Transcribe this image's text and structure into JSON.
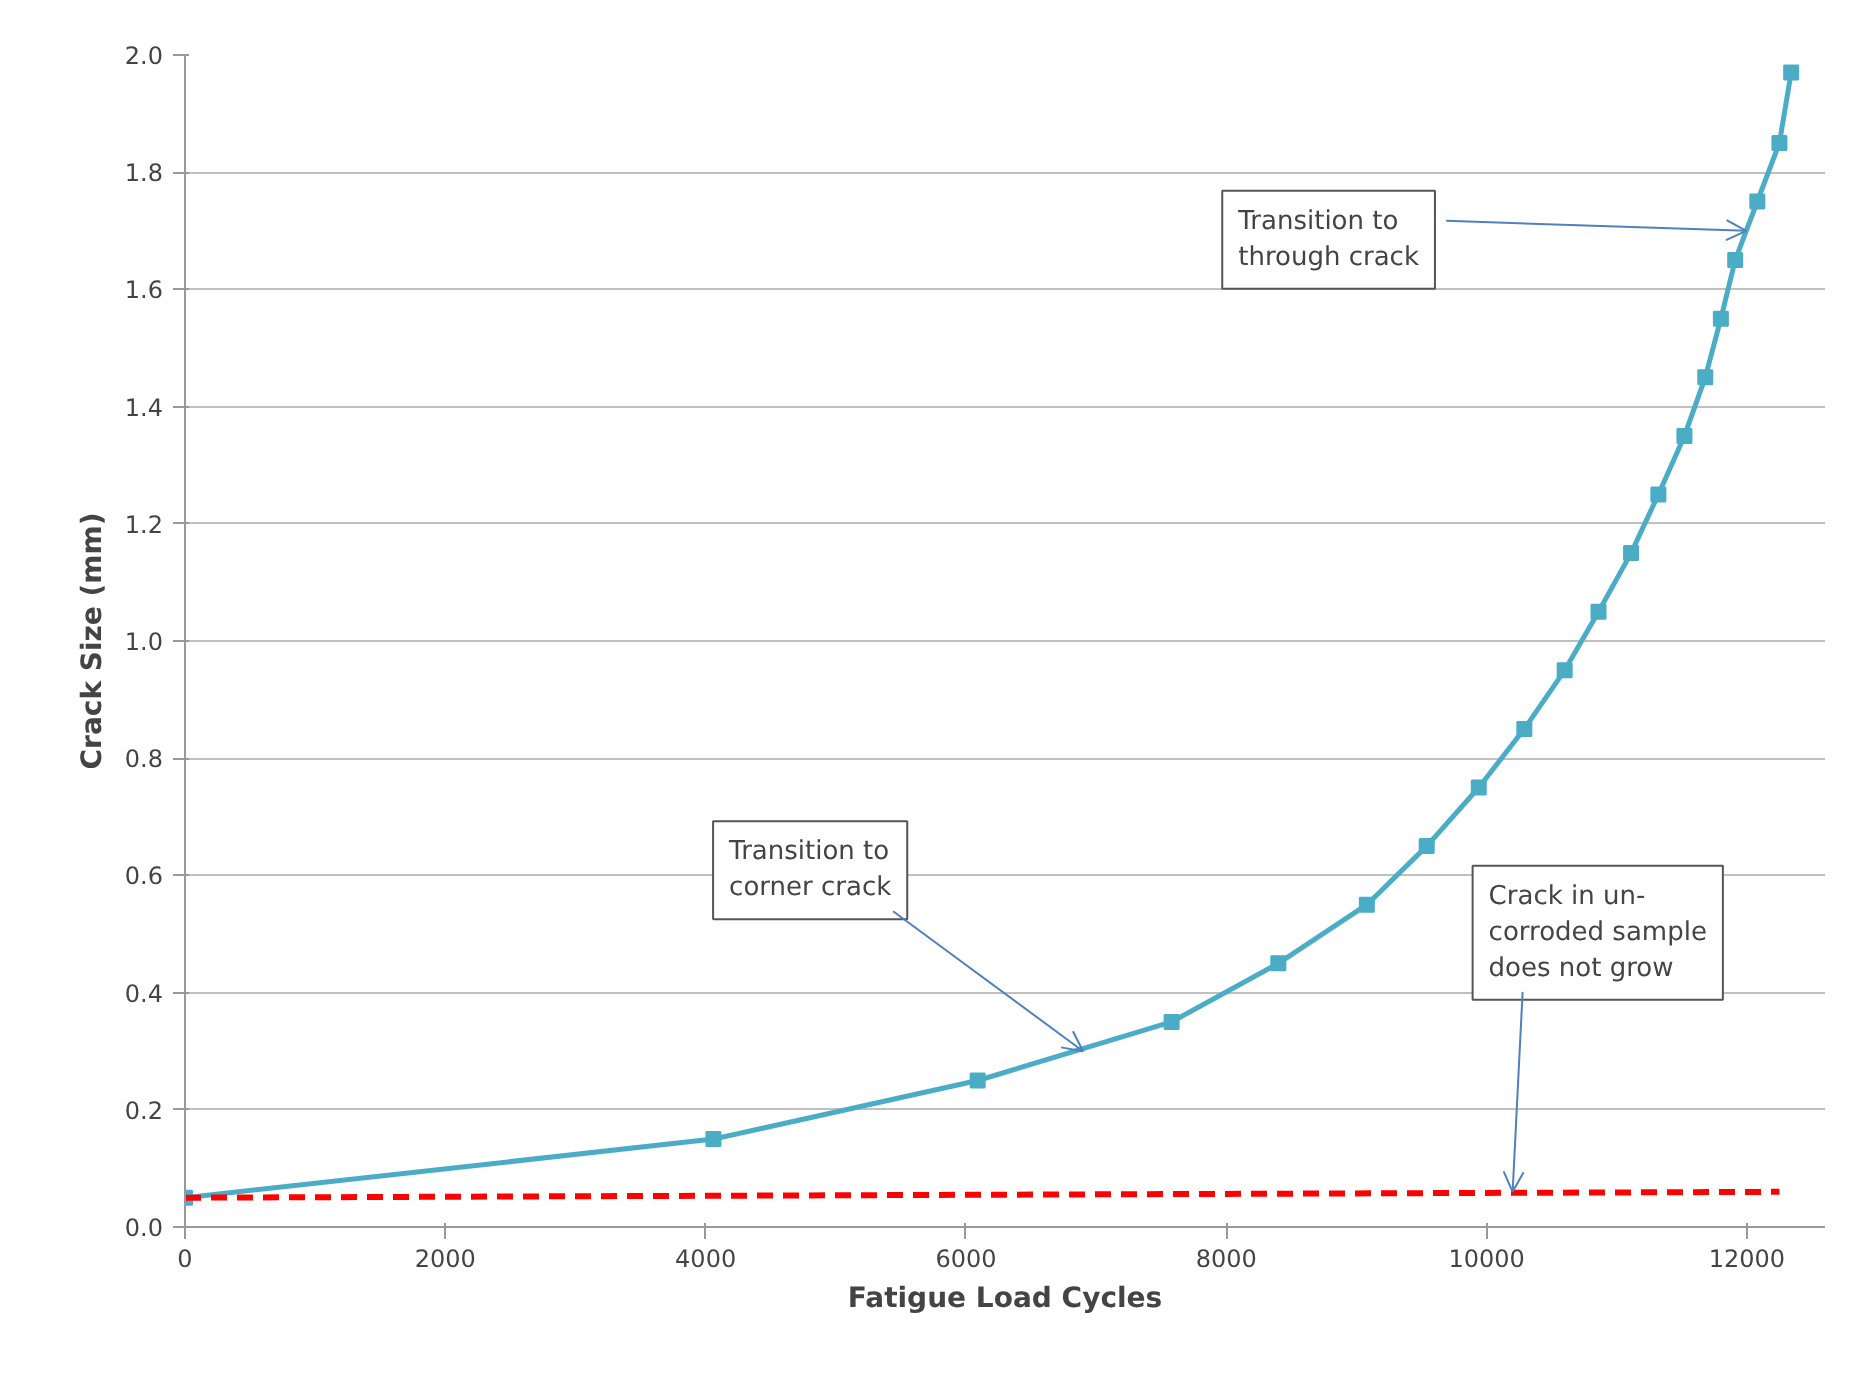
{
  "chart_data": {
    "type": "line",
    "xlabel": "Fatigue Load Cycles",
    "ylabel": "Crack Size (mm)",
    "xlim": [
      0,
      12600
    ],
    "ylim": [
      0,
      2.0
    ],
    "xticks": [
      0,
      2000,
      4000,
      6000,
      8000,
      10000,
      12000
    ],
    "yticks": [
      {
        "value": 0,
        "label": "0.0"
      },
      {
        "value": 0.2,
        "label": "0.2"
      },
      {
        "value": 0.4,
        "label": "0.4"
      },
      {
        "value": 0.6,
        "label": "0.6"
      },
      {
        "value": 0.8,
        "label": "0.8"
      },
      {
        "value": 1.0,
        "label": "1.0"
      },
      {
        "value": 1.2,
        "label": "1.2"
      },
      {
        "value": 1.4,
        "label": "1.4"
      },
      {
        "value": 1.6,
        "label": "1.6"
      },
      {
        "value": 1.8,
        "label": "1.8"
      },
      {
        "value": 2.0,
        "label": "2.0"
      }
    ],
    "grid": "y",
    "series": [
      {
        "color": "#4bacc6",
        "marker": "square",
        "line_style": "solid",
        "x": [
          0,
          4060,
          6090,
          7580,
          8400,
          9080,
          9540,
          9940,
          10290,
          10600,
          10860,
          11110,
          11320,
          11520,
          11680,
          11800,
          11910,
          12080,
          12250,
          12340
        ],
        "values": [
          0.05,
          0.15,
          0.25,
          0.35,
          0.45,
          0.55,
          0.65,
          0.75,
          0.85,
          0.95,
          1.05,
          1.15,
          1.25,
          1.35,
          1.45,
          1.55,
          1.65,
          1.75,
          1.85,
          1.97
        ]
      },
      {
        "color": "#ff0000",
        "marker": "none",
        "line_style": "dashed",
        "x": [
          0,
          12250
        ],
        "values": [
          0.05,
          0.06
        ]
      }
    ],
    "annotations": [
      {
        "text": "Transition to\ncorner crack",
        "x": 6900,
        "y": 0.3
      },
      {
        "text": "Transition to\nthrough crack",
        "x": 11995,
        "y": 1.7
      },
      {
        "text": "Crack in un-\ncorroded sample\ndoes not grow",
        "x": 10200,
        "y": 0.06
      }
    ]
  }
}
